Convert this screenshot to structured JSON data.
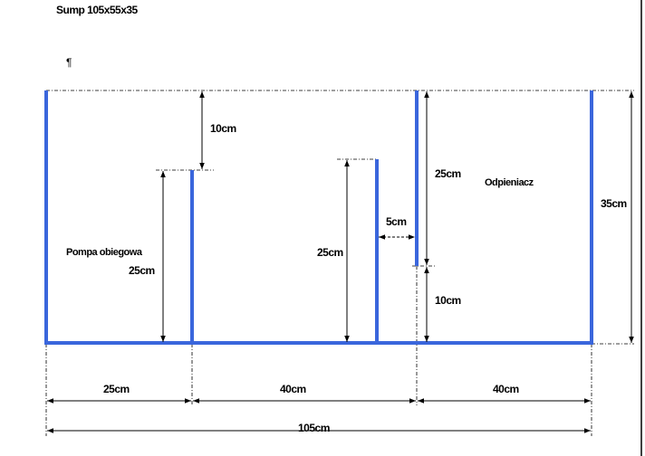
{
  "title": "Sump 105x55x35",
  "mark": "¶",
  "labels": [
    "10cm",
    "Pompa obiegowa",
    "25cm",
    "25cm",
    "5cm",
    "25cm",
    "Odpieniacz",
    "35cm",
    "10cm",
    "25cm",
    "40cm",
    "40cm",
    "105cm"
  ]
}
